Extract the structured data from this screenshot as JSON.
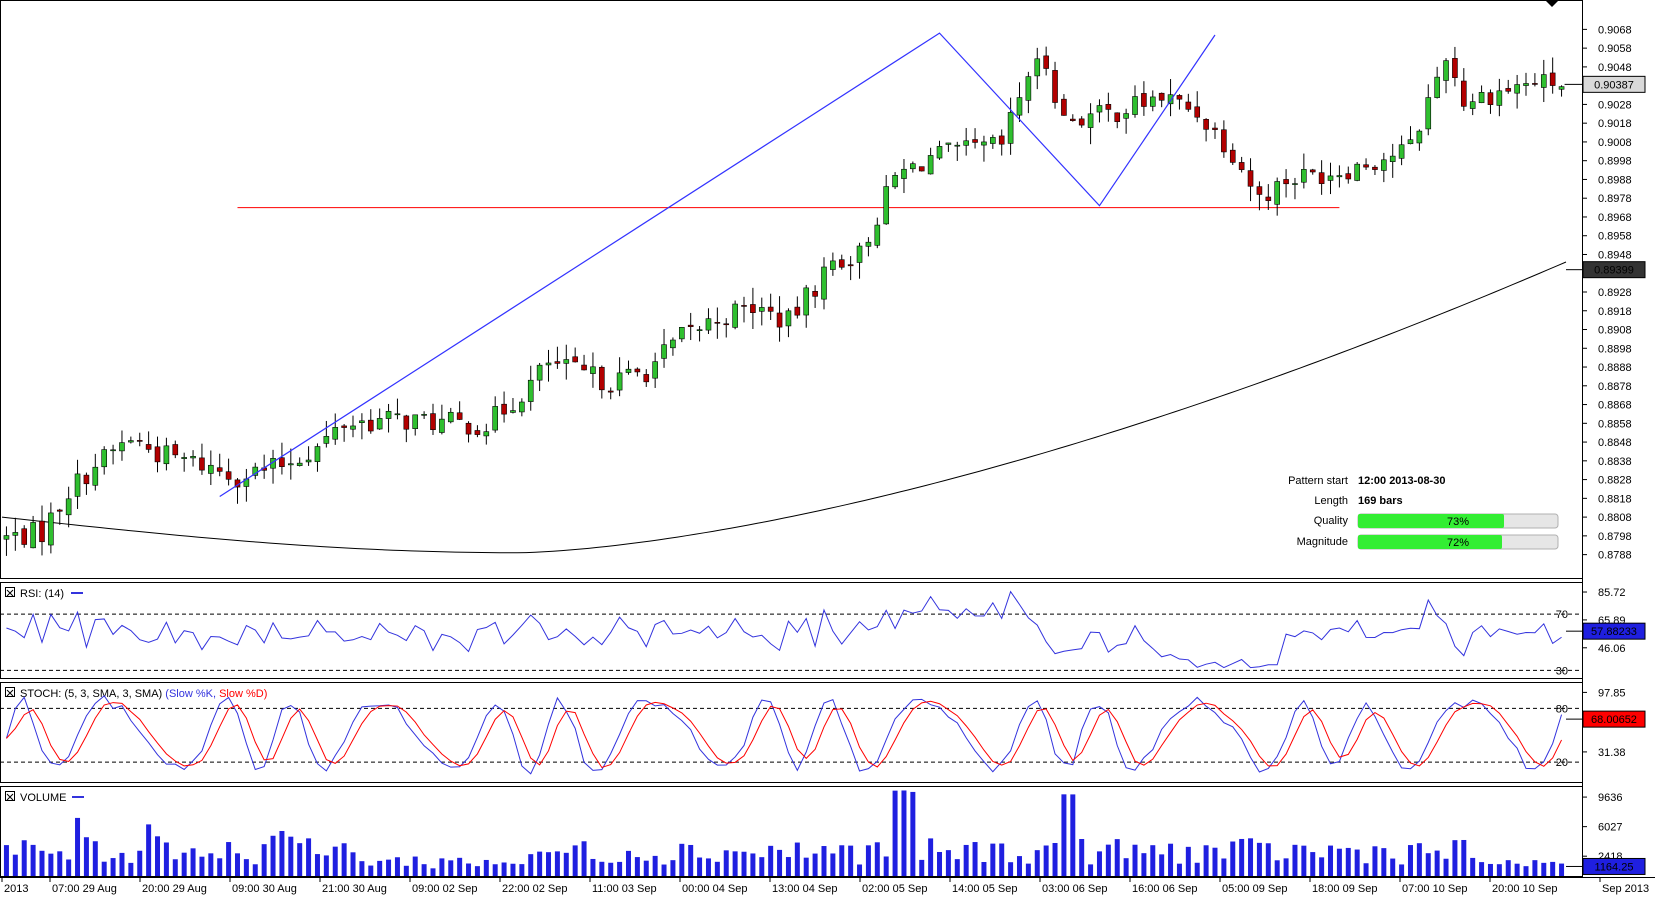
{
  "chart_data": {
    "type": "candlestick",
    "instrument_price_labels": {
      "price_ticks": [
        "0.9068",
        "0.9058",
        "0.9048",
        "0.9028",
        "0.9018",
        "0.9008",
        "0.8998",
        "0.8988",
        "0.8978",
        "0.8968",
        "0.8958",
        "0.8948",
        "0.8928",
        "0.8918",
        "0.8908",
        "0.8898",
        "0.8888",
        "0.8878",
        "0.8868",
        "0.8858",
        "0.8848",
        "0.8838",
        "0.8828",
        "0.8818",
        "0.8808",
        "0.8798",
        "0.8788"
      ],
      "last_price_badge": "0.90387",
      "ma_price_badge": "0.89399"
    },
    "price_range": [
      0.8783,
      0.9073
    ],
    "time_labels": [
      "2013",
      "07:00 29 Aug",
      "20:00 29 Aug",
      "09:00 30 Aug",
      "21:00 30 Aug",
      "09:00 02 Sep",
      "22:00 02 Sep",
      "11:00 03 Sep",
      "00:00 04 Sep",
      "13:00 04 Sep",
      "02:00 05 Sep",
      "14:00 05 Sep",
      "03:00 06 Sep",
      "16:00 06 Sep",
      "05:00 09 Sep",
      "18:00 09 Sep",
      "07:00 10 Sep",
      "20:00 10 Sep",
      "Sep 2013"
    ],
    "pattern": {
      "start_label": "Pattern start",
      "start_value": "12:00 2013-08-30",
      "length_label": "Length",
      "length_value": "169 bars",
      "quality_label": "Quality",
      "quality_pct": 73,
      "quality_text": "73%",
      "magnitude_label": "Magnitude",
      "magnitude_pct": 72,
      "magnitude_text": "72%",
      "support_level": 0.8973,
      "zigzag": [
        [
          24,
          0.8819
        ],
        [
          105,
          0.9066
        ],
        [
          123,
          0.8974
        ],
        [
          136,
          0.9065
        ]
      ]
    },
    "rsi": {
      "title": "RSI: (14)",
      "ticks": [
        "85.72",
        "65.89",
        "46.06"
      ],
      "levels": [
        "70",
        "30"
      ],
      "badge": "57.88233",
      "range": [
        26,
        90
      ]
    },
    "stoch": {
      "title_prefix": "STOCH: (5, 3, SMA, 3, SMA)",
      "k_label": "(Slow %K,",
      "d_label": "Slow %D)",
      "ticks": [
        "97.85",
        "31.38"
      ],
      "levels": [
        "80",
        "20"
      ],
      "badge": "68.00652",
      "range": [
        0,
        105
      ]
    },
    "volume": {
      "title": "VOLUME",
      "ticks": [
        "9636",
        "6027",
        "2418"
      ],
      "badge": "1164.25",
      "range": [
        0,
        10500
      ]
    },
    "colors": {
      "bull": "#2fbf2f",
      "bear": "#b20000",
      "zigzag": "#3333ff",
      "support": "#ff0000",
      "ma": "#000000",
      "rsi": "#3333dd",
      "stoch_k": "#3333dd",
      "stoch_d": "#ff0000",
      "volume": "#1f1fe0",
      "quality_fill": "#33ee33"
    }
  }
}
